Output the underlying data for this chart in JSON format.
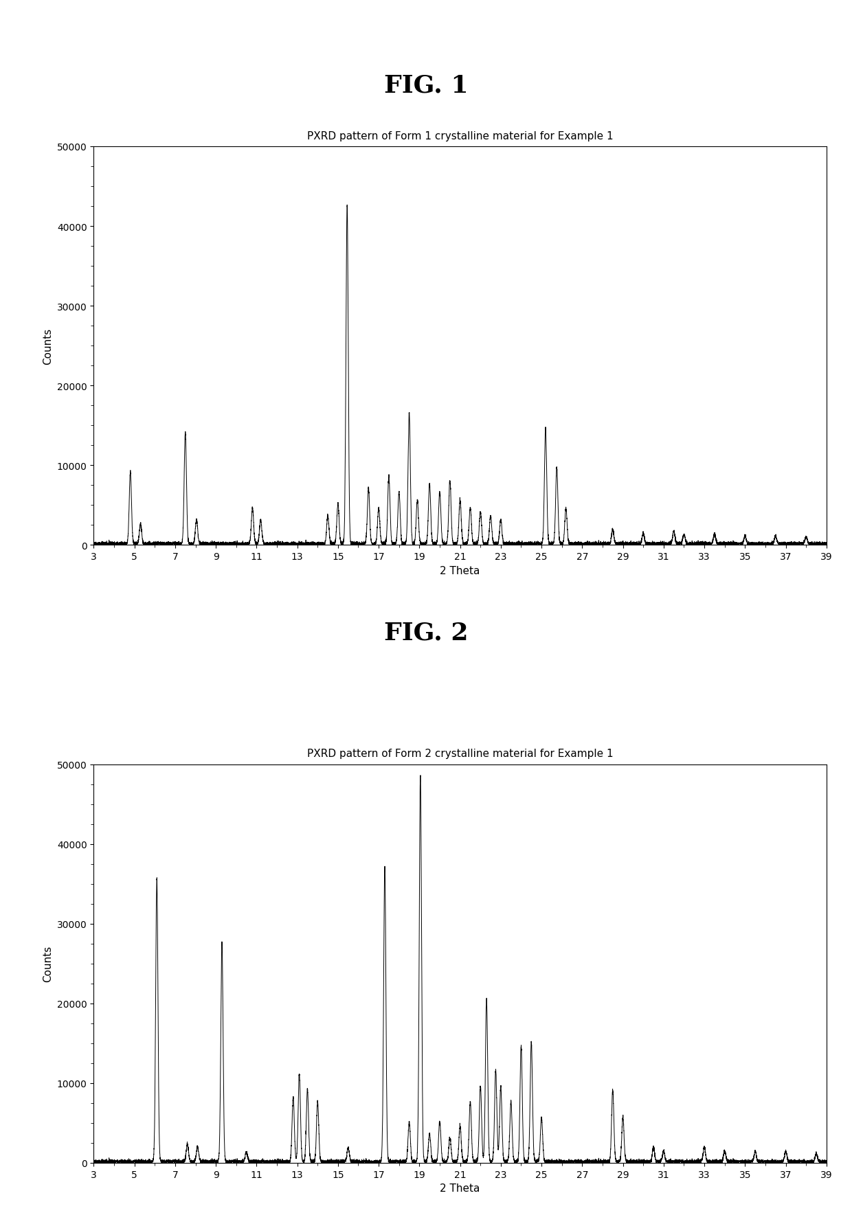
{
  "fig1_title": "FIG. 1",
  "fig2_title": "FIG. 2",
  "plot1_title": "PXRD pattern of Form 1 crystalline material for Example 1",
  "plot2_title": "PXRD pattern of Form 2 crystalline material for Example 1",
  "xlabel": "2 Theta",
  "ylabel": "Counts",
  "xlim": [
    3,
    39
  ],
  "ylim1": [
    0,
    50000
  ],
  "ylim2": [
    0,
    50000
  ],
  "yticks": [
    0,
    10000,
    20000,
    30000,
    40000,
    50000
  ],
  "xticks": [
    3,
    5,
    7,
    9,
    11,
    13,
    15,
    17,
    19,
    21,
    23,
    25,
    27,
    29,
    31,
    33,
    35,
    37,
    39
  ],
  "form1_peaks": [
    [
      4.8,
      9000
    ],
    [
      5.3,
      2500
    ],
    [
      7.5,
      14000
    ],
    [
      8.05,
      3000
    ],
    [
      10.8,
      4500
    ],
    [
      11.2,
      3000
    ],
    [
      14.5,
      3500
    ],
    [
      15.0,
      5000
    ],
    [
      15.45,
      42500
    ],
    [
      16.5,
      7000
    ],
    [
      17.0,
      4500
    ],
    [
      17.5,
      8500
    ],
    [
      18.0,
      6500
    ],
    [
      18.5,
      16500
    ],
    [
      18.9,
      5500
    ],
    [
      19.5,
      7500
    ],
    [
      20.0,
      6500
    ],
    [
      20.5,
      8000
    ],
    [
      21.0,
      5500
    ],
    [
      21.5,
      4500
    ],
    [
      22.0,
      4000
    ],
    [
      22.5,
      3500
    ],
    [
      23.0,
      3000
    ],
    [
      25.2,
      14500
    ],
    [
      25.75,
      9500
    ],
    [
      26.2,
      4500
    ],
    [
      28.5,
      1800
    ],
    [
      30.0,
      1300
    ],
    [
      31.5,
      1600
    ],
    [
      32.0,
      1200
    ],
    [
      33.5,
      1200
    ],
    [
      35.0,
      1000
    ],
    [
      36.5,
      1000
    ],
    [
      38.0,
      900
    ]
  ],
  "form2_peaks": [
    [
      6.1,
      35500
    ],
    [
      7.6,
      2200
    ],
    [
      8.1,
      1800
    ],
    [
      9.3,
      27500
    ],
    [
      10.5,
      1200
    ],
    [
      12.8,
      8000
    ],
    [
      13.1,
      11000
    ],
    [
      13.5,
      9000
    ],
    [
      14.0,
      7500
    ],
    [
      15.5,
      1800
    ],
    [
      17.3,
      37000
    ],
    [
      18.5,
      5000
    ],
    [
      19.05,
      48500
    ],
    [
      19.5,
      3500
    ],
    [
      20.0,
      5000
    ],
    [
      20.5,
      3000
    ],
    [
      21.0,
      4500
    ],
    [
      21.5,
      7500
    ],
    [
      22.0,
      9500
    ],
    [
      22.3,
      20500
    ],
    [
      22.75,
      11500
    ],
    [
      23.0,
      9500
    ],
    [
      23.5,
      7500
    ],
    [
      24.0,
      14500
    ],
    [
      24.5,
      15000
    ],
    [
      25.0,
      5500
    ],
    [
      28.5,
      9000
    ],
    [
      29.0,
      5500
    ],
    [
      30.5,
      1800
    ],
    [
      31.0,
      1300
    ],
    [
      33.0,
      1800
    ],
    [
      34.0,
      1300
    ],
    [
      35.5,
      1300
    ],
    [
      37.0,
      1300
    ],
    [
      38.5,
      1000
    ]
  ],
  "line_color": "#000000",
  "bg_color": "#ffffff",
  "fig_title_fontsize": 26,
  "plot_title_fontsize": 11,
  "axis_label_fontsize": 11,
  "tick_fontsize": 10,
  "peak_sigma": 0.055,
  "noise_level": 120,
  "baseline": 150
}
